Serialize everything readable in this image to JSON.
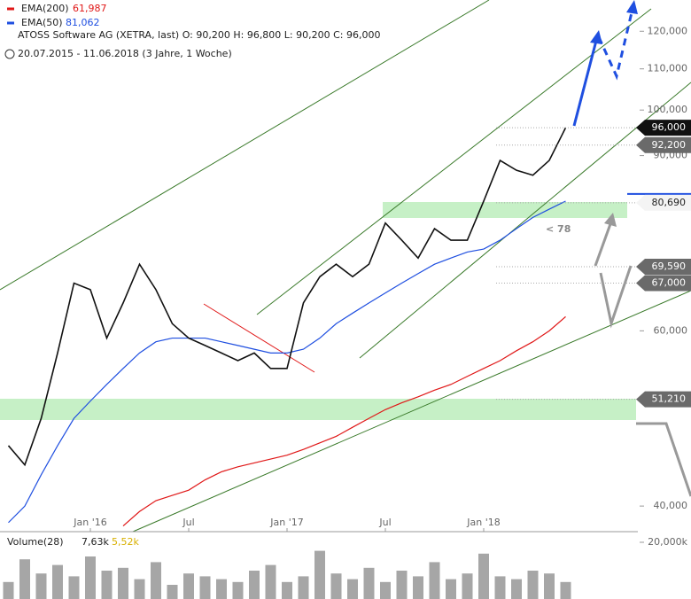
{
  "chart_data": [
    {
      "type": "line",
      "legend_lines": [
        "ATOSS Software AG (XETRA, last)  O: 90,200  H: 96,800  L: 90,200  C: 96,000",
        "20.07.2015 - 11.06.2018  (3 Jahre, 1 Woche)"
      ],
      "categories": [
        null,
        null,
        null,
        null,
        null,
        "Jan '16",
        null,
        null,
        null,
        null,
        null,
        "Jul",
        null,
        null,
        null,
        null,
        null,
        "Jan '17",
        null,
        null,
        null,
        null,
        null,
        "Jul",
        null,
        null,
        null,
        null,
        null,
        "Jan '18",
        null,
        null,
        null,
        null,
        null
      ],
      "series": [
        {
          "name": "EMA(200)",
          "legend_value": "61,987",
          "color": "#e01818",
          "values": [
            null,
            null,
            null,
            null,
            null,
            null,
            null,
            38.2,
            39.5,
            40.5,
            41,
            41.5,
            42.5,
            43.3,
            43.8,
            44.2,
            44.6,
            45,
            45.6,
            46.3,
            47,
            48,
            49,
            50,
            50.8,
            51.5,
            52.3,
            53,
            54,
            55,
            56,
            57.3,
            58.5,
            60,
            62
          ]
        },
        {
          "name": "EMA(50)",
          "legend_value": "81,062",
          "color": "#1f4fe0",
          "values": [
            38.5,
            40,
            43,
            46,
            49,
            51,
            53,
            55,
            57,
            58.5,
            59,
            59,
            59,
            58.5,
            58,
            57.5,
            57,
            57,
            57.5,
            59,
            61,
            62.5,
            64,
            65.5,
            67,
            68.5,
            70,
            71,
            72,
            72.5,
            74,
            76,
            78,
            79.5,
            81
          ]
        },
        {
          "name": "ATOSS Software AG",
          "color": "#111111",
          "values": [
            46,
            44,
            49,
            57,
            67,
            66,
            59,
            64,
            70,
            66,
            61,
            59,
            58,
            57,
            56,
            57,
            55,
            55,
            64,
            68,
            70,
            68,
            70,
            77,
            74,
            71,
            76,
            74,
            74,
            81,
            89,
            87,
            86,
            89,
            96
          ]
        }
      ],
      "yscale": "log",
      "ylim": [
        37.7,
        129
      ],
      "yticks": [
        {
          "value": 40,
          "label": "40,000"
        },
        {
          "value": 60,
          "label": "60,000"
        },
        {
          "value": 90,
          "label": "90,000"
        },
        {
          "value": 100,
          "label": "100,000"
        },
        {
          "value": 110,
          "label": "110,000"
        },
        {
          "value": 120,
          "label": "120,000"
        }
      ],
      "price_tags": [
        {
          "value": 96,
          "label": "96,000"
        },
        {
          "value": 92.2,
          "label": "92,200"
        },
        {
          "value": 80.69,
          "label": "80,690"
        },
        {
          "value": 69.59,
          "label": "69,590"
        },
        {
          "value": 67,
          "label": "67,000"
        },
        {
          "value": 51.21,
          "label": "51,210"
        }
      ],
      "annotations": [
        "< 78"
      ]
    },
    {
      "type": "bar",
      "name": "Volume(28)",
      "legend_values": [
        "7,63k",
        "5,52k"
      ],
      "values": [
        6,
        14,
        9,
        12,
        8,
        15,
        10,
        11,
        7,
        13,
        5,
        9,
        8,
        7,
        6,
        10,
        12,
        6,
        8,
        17,
        9,
        7,
        11,
        6,
        10,
        8,
        13,
        7,
        9,
        16,
        8,
        7,
        10,
        9,
        6
      ],
      "color": "#888888",
      "ylim": [
        0,
        23.75
      ],
      "yticks": [
        {
          "value": 20,
          "label": "20,000k"
        }
      ]
    }
  ]
}
